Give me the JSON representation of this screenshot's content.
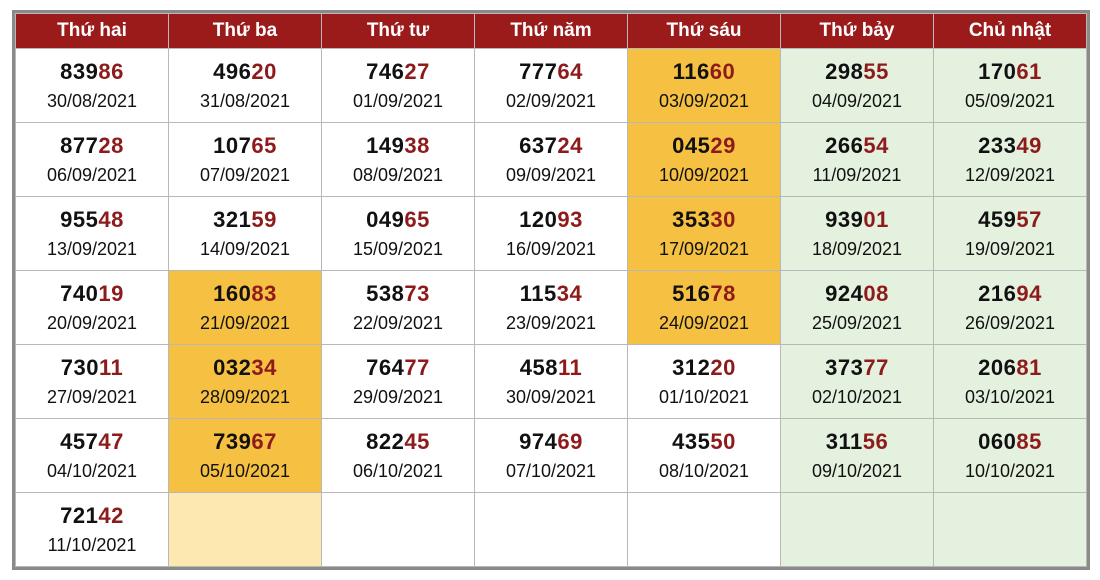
{
  "headers": [
    "Thứ hai",
    "Thứ ba",
    "Thứ tư",
    "Thứ năm",
    "Thứ sáu",
    "Thứ bảy",
    "Chủ nhật"
  ],
  "colors": {
    "header_bg": "#9b1b1b",
    "highlight": "#f6c143",
    "highlight_light": "#fde8b1",
    "weekend_bg": "#e4f1df",
    "tail_digits": "#8e1b1b"
  },
  "rows": [
    [
      {
        "num": "83986",
        "head": "839",
        "tail": "86",
        "date": "30/08/2021",
        "style": ""
      },
      {
        "num": "49620",
        "head": "496",
        "tail": "20",
        "date": "31/08/2021",
        "style": ""
      },
      {
        "num": "74627",
        "head": "746",
        "tail": "27",
        "date": "01/09/2021",
        "style": ""
      },
      {
        "num": "77764",
        "head": "777",
        "tail": "64",
        "date": "02/09/2021",
        "style": ""
      },
      {
        "num": "11660",
        "head": "116",
        "tail": "60",
        "date": "03/09/2021",
        "style": "hl"
      },
      {
        "num": "29855",
        "head": "298",
        "tail": "55",
        "date": "04/09/2021",
        "style": "weekend"
      },
      {
        "num": "17061",
        "head": "170",
        "tail": "61",
        "date": "05/09/2021",
        "style": "weekend"
      }
    ],
    [
      {
        "num": "87728",
        "head": "877",
        "tail": "28",
        "date": "06/09/2021",
        "style": ""
      },
      {
        "num": "10765",
        "head": "107",
        "tail": "65",
        "date": "07/09/2021",
        "style": ""
      },
      {
        "num": "14938",
        "head": "149",
        "tail": "38",
        "date": "08/09/2021",
        "style": ""
      },
      {
        "num": "63724",
        "head": "637",
        "tail": "24",
        "date": "09/09/2021",
        "style": ""
      },
      {
        "num": "04529",
        "head": "045",
        "tail": "29",
        "date": "10/09/2021",
        "style": "hl"
      },
      {
        "num": "26654",
        "head": "266",
        "tail": "54",
        "date": "11/09/2021",
        "style": "weekend"
      },
      {
        "num": "23349",
        "head": "233",
        "tail": "49",
        "date": "12/09/2021",
        "style": "weekend"
      }
    ],
    [
      {
        "num": "95548",
        "head": "955",
        "tail": "48",
        "date": "13/09/2021",
        "style": ""
      },
      {
        "num": "32159",
        "head": "321",
        "tail": "59",
        "date": "14/09/2021",
        "style": ""
      },
      {
        "num": "04965",
        "head": "049",
        "tail": "65",
        "date": "15/09/2021",
        "style": ""
      },
      {
        "num": "12093",
        "head": "120",
        "tail": "93",
        "date": "16/09/2021",
        "style": ""
      },
      {
        "num": "35330",
        "head": "353",
        "tail": "30",
        "date": "17/09/2021",
        "style": "hl"
      },
      {
        "num": "93901",
        "head": "939",
        "tail": "01",
        "date": "18/09/2021",
        "style": "weekend"
      },
      {
        "num": "45957",
        "head": "459",
        "tail": "57",
        "date": "19/09/2021",
        "style": "weekend"
      }
    ],
    [
      {
        "num": "74019",
        "head": "740",
        "tail": "19",
        "date": "20/09/2021",
        "style": ""
      },
      {
        "num": "16083",
        "head": "160",
        "tail": "83",
        "date": "21/09/2021",
        "style": "hl"
      },
      {
        "num": "53873",
        "head": "538",
        "tail": "73",
        "date": "22/09/2021",
        "style": ""
      },
      {
        "num": "11534",
        "head": "115",
        "tail": "34",
        "date": "23/09/2021",
        "style": ""
      },
      {
        "num": "51678",
        "head": "516",
        "tail": "78",
        "date": "24/09/2021",
        "style": "hl"
      },
      {
        "num": "92408",
        "head": "924",
        "tail": "08",
        "date": "25/09/2021",
        "style": "weekend"
      },
      {
        "num": "21694",
        "head": "216",
        "tail": "94",
        "date": "26/09/2021",
        "style": "weekend"
      }
    ],
    [
      {
        "num": "73011",
        "head": "730",
        "tail": "11",
        "date": "27/09/2021",
        "style": ""
      },
      {
        "num": "03234",
        "head": "032",
        "tail": "34",
        "date": "28/09/2021",
        "style": "hl"
      },
      {
        "num": "76477",
        "head": "764",
        "tail": "77",
        "date": "29/09/2021",
        "style": ""
      },
      {
        "num": "45811",
        "head": "458",
        "tail": "11",
        "date": "30/09/2021",
        "style": ""
      },
      {
        "num": "31220",
        "head": "312",
        "tail": "20",
        "date": "01/10/2021",
        "style": ""
      },
      {
        "num": "37377",
        "head": "373",
        "tail": "77",
        "date": "02/10/2021",
        "style": "weekend"
      },
      {
        "num": "20681",
        "head": "206",
        "tail": "81",
        "date": "03/10/2021",
        "style": "weekend"
      }
    ],
    [
      {
        "num": "45747",
        "head": "457",
        "tail": "47",
        "date": "04/10/2021",
        "style": ""
      },
      {
        "num": "73967",
        "head": "739",
        "tail": "67",
        "date": "05/10/2021",
        "style": "hl"
      },
      {
        "num": "82245",
        "head": "822",
        "tail": "45",
        "date": "06/10/2021",
        "style": ""
      },
      {
        "num": "97469",
        "head": "974",
        "tail": "69",
        "date": "07/10/2021",
        "style": ""
      },
      {
        "num": "43550",
        "head": "435",
        "tail": "50",
        "date": "08/10/2021",
        "style": ""
      },
      {
        "num": "31156",
        "head": "311",
        "tail": "56",
        "date": "09/10/2021",
        "style": "weekend"
      },
      {
        "num": "06085",
        "head": "060",
        "tail": "85",
        "date": "10/10/2021",
        "style": "weekend"
      }
    ],
    [
      {
        "num": "72142",
        "head": "721",
        "tail": "42",
        "date": "11/10/2021",
        "style": ""
      },
      {
        "num": "",
        "head": "",
        "tail": "",
        "date": "",
        "style": "hl-light"
      },
      {
        "num": "",
        "head": "",
        "tail": "",
        "date": "",
        "style": ""
      },
      {
        "num": "",
        "head": "",
        "tail": "",
        "date": "",
        "style": ""
      },
      {
        "num": "",
        "head": "",
        "tail": "",
        "date": "",
        "style": ""
      },
      {
        "num": "",
        "head": "",
        "tail": "",
        "date": "",
        "style": "weekend"
      },
      {
        "num": "",
        "head": "",
        "tail": "",
        "date": "",
        "style": "weekend"
      }
    ]
  ]
}
